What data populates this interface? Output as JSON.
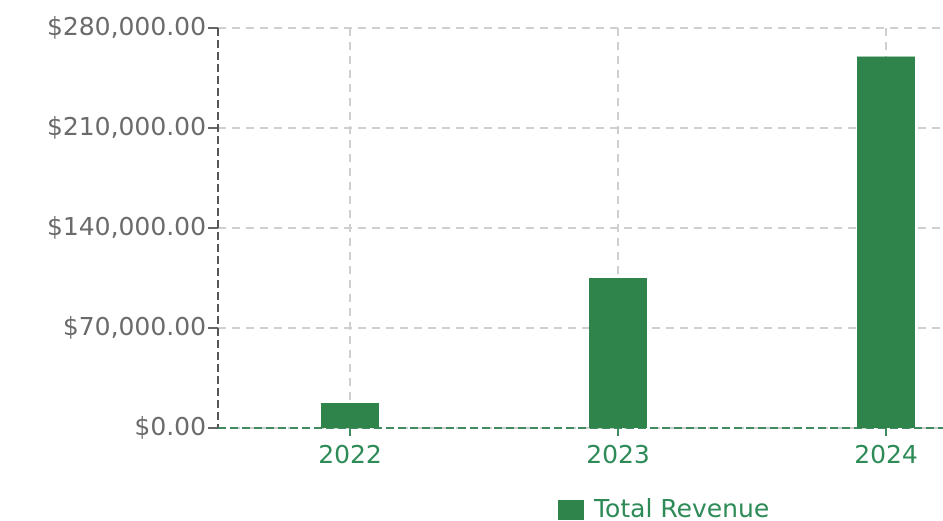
{
  "chart_data": {
    "type": "bar",
    "categories": [
      "2022",
      "2023",
      "2024"
    ],
    "series": [
      {
        "name": "Total Revenue",
        "color": "#2e844a",
        "values": [
          17500,
          105000,
          260000
        ]
      }
    ],
    "ylim": [
      0,
      280000
    ],
    "yticks": [
      {
        "value": 0,
        "label": "$0.00"
      },
      {
        "value": 70000,
        "label": "$70,000.00"
      },
      {
        "value": 140000,
        "label": "$140,000.00"
      },
      {
        "value": 210000,
        "label": "$210,000.00"
      },
      {
        "value": 280000,
        "label": "$280,000.00"
      }
    ],
    "grid": true,
    "legend": "bottom"
  }
}
